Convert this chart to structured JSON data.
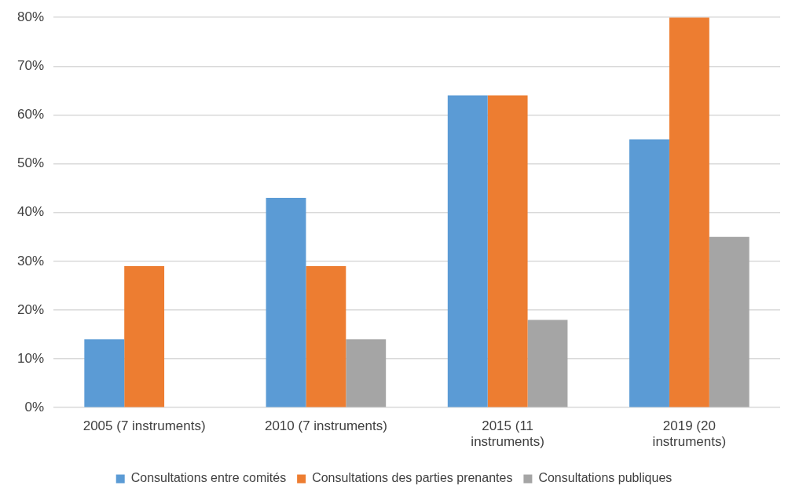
{
  "chart_data": {
    "type": "bar",
    "categories": [
      "2005 (7 instruments)",
      "2010 (7 instruments)",
      "2015 (11\ninstruments)",
      "2019 (20\ninstruments)"
    ],
    "series": [
      {
        "name": "Consultations entre comités",
        "color": "#5b9bd5",
        "values": [
          14,
          43,
          64,
          55
        ]
      },
      {
        "name": "Consultations des parties prenantes",
        "color": "#ed7d31",
        "values": [
          29,
          29,
          64,
          80
        ]
      },
      {
        "name": "Consultations publiques",
        "color": "#a5a5a5",
        "values": [
          0,
          14,
          18,
          35
        ]
      }
    ],
    "ylim": [
      0,
      80
    ],
    "yticks": [
      {
        "value": 0,
        "label": "0%"
      },
      {
        "value": 10,
        "label": "10%"
      },
      {
        "value": 20,
        "label": "20%"
      },
      {
        "value": 30,
        "label": "30%"
      },
      {
        "value": 40,
        "label": "40%"
      },
      {
        "value": 50,
        "label": "50%"
      },
      {
        "value": 60,
        "label": "60%"
      },
      {
        "value": 70,
        "label": "70%"
      },
      {
        "value": 80,
        "label": "80%"
      }
    ],
    "grid": "y",
    "legend": "bottom"
  }
}
